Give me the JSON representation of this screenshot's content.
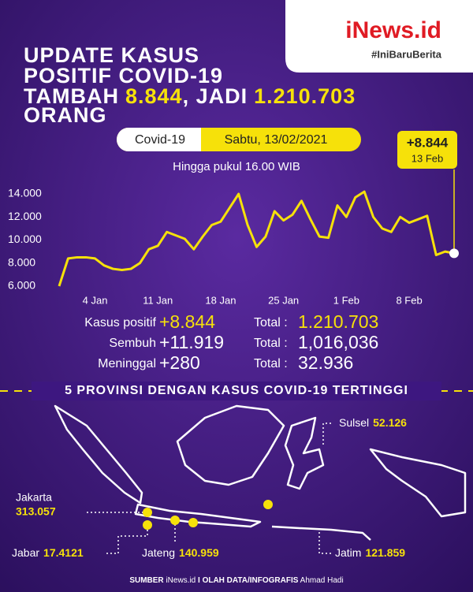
{
  "brand": {
    "name": "iNews.id",
    "tagline": "#IniBaruBerita"
  },
  "headline": {
    "line1": "UPDATE KASUS",
    "line2": "POSITIF COVID-19",
    "line3_a": "TAMBAH",
    "line3_b": "8.844",
    "line3_c": ", JADI",
    "line3_d": "1.210.703",
    "line4": "ORANG"
  },
  "tag": {
    "topic": "Covid-19",
    "date": "Sabtu, 13/02/2021"
  },
  "chart_data": {
    "type": "line",
    "subtitle": "Hingga pukul 16.00 WIB",
    "categories": [
      null,
      null,
      null,
      null,
      "4 Jan",
      null,
      null,
      null,
      null,
      null,
      null,
      "11 Jan",
      null,
      null,
      null,
      null,
      null,
      null,
      "18 Jan",
      null,
      null,
      null,
      null,
      null,
      null,
      "25 Jan",
      null,
      null,
      null,
      null,
      null,
      null,
      "1 Feb",
      null,
      null,
      null,
      null,
      null,
      null,
      "8 Feb",
      null,
      null,
      null,
      null,
      null
    ],
    "series": [
      {
        "name": "Kasus positif",
        "color": "#f6e10a",
        "values": [
          6000,
          8400,
          8500,
          8500,
          8400,
          7800,
          7500,
          7400,
          7500,
          8000,
          9200,
          9500,
          10700,
          10400,
          10100,
          9200,
          10300,
          11300,
          11600,
          12800,
          14000,
          11300,
          9400,
          10300,
          12500,
          11700,
          12200,
          13400,
          11800,
          10300,
          10200,
          13000,
          12000,
          13700,
          14200,
          12000,
          11000,
          10700,
          12000,
          11500,
          11800,
          12100,
          8700,
          9000,
          8844
        ]
      }
    ],
    "ylim": [
      6000,
      14000
    ],
    "yticks": [
      {
        "value": 6000,
        "label": "6.000"
      },
      {
        "value": 8000,
        "label": "8.000"
      },
      {
        "value": 10000,
        "label": "10.000"
      },
      {
        "value": 12000,
        "label": "12.000"
      },
      {
        "value": 14000,
        "label": "14.000"
      }
    ],
    "annotation": {
      "text": "+8.844",
      "date": "13 Feb"
    }
  },
  "stats": [
    {
      "label": "Kasus positif",
      "value": "+8.844",
      "total_label": "Total :",
      "total": "1.210.703"
    },
    {
      "label": "Sembuh",
      "value": "+11.919",
      "total_label": "Total :",
      "total": "1,016,036"
    },
    {
      "label": "Meninggal",
      "value": "+280",
      "total_label": "Total :",
      "total": "32.936"
    }
  ],
  "section_title": "5 PROVINSI DENGAN KASUS COVID-19 TERTINGGI",
  "provinces": [
    {
      "name": "Sulsel",
      "value": "52.126"
    },
    {
      "name": "Jakarta",
      "value": "313.057"
    },
    {
      "name": "Jabar",
      "value": "17.4121"
    },
    {
      "name": "Jateng",
      "value": "140.959"
    },
    {
      "name": "Jatim",
      "value": "121.859"
    }
  ],
  "footer": {
    "a": "SUMBER",
    "b": "iNews.id",
    "c": "I OLAH DATA/INFOGRAFIS",
    "d": "Ahmad Hadi"
  }
}
